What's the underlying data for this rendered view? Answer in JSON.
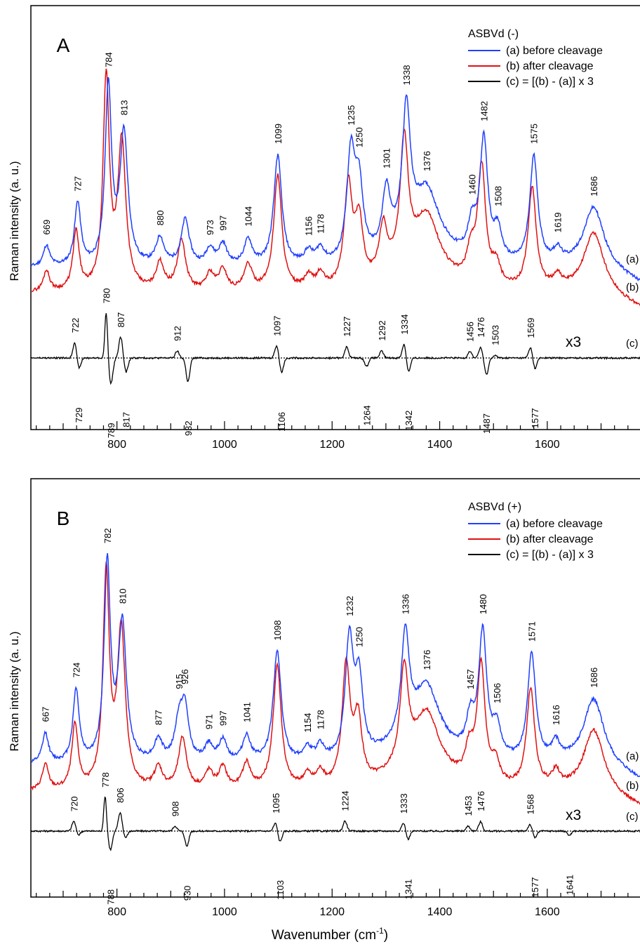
{
  "figure": {
    "xlabel": "Wavenumber (cm",
    "xlabel_sup": "-1",
    "xlabel_close": ")"
  },
  "chart_data": [
    {
      "type": "line",
      "panel_label": "A",
      "ylabel": "Raman intensity (a. u.)",
      "xlim": [
        640,
        1775
      ],
      "x_ticks": [
        800,
        1000,
        1200,
        1400,
        1600
      ],
      "legend": {
        "title": "ASBVd (-)",
        "placement": "top-right",
        "entries": [
          "(a) before cleavage",
          "(b) after cleavage",
          "(c) = [(b) - (a)] x 3"
        ]
      },
      "trace_labels": [
        "(a)",
        "(b)",
        "(c)"
      ],
      "scale_note": "x3",
      "series": [
        {
          "name": "(a) before cleavage",
          "color": "#1f3fff",
          "peaks": [
            [
              669,
              0.1
            ],
            [
              727,
              0.3
            ],
            [
              784,
              0.85
            ],
            [
              813,
              0.62
            ],
            [
              880,
              0.13
            ],
            [
              927,
              0.22
            ],
            [
              973,
              0.08
            ],
            [
              997,
              0.1
            ],
            [
              1044,
              0.12
            ],
            [
              1099,
              0.52
            ],
            [
              1156,
              0.06
            ],
            [
              1178,
              0.07
            ],
            [
              1235,
              0.5
            ],
            [
              1250,
              0.34
            ],
            [
              1301,
              0.28
            ],
            [
              1338,
              0.62
            ],
            [
              1376,
              0.28
            ],
            [
              1460,
              0.15
            ],
            [
              1482,
              0.57
            ],
            [
              1508,
              0.14
            ],
            [
              1575,
              0.51
            ],
            [
              1619,
              0.06
            ],
            [
              1686,
              0.28
            ]
          ]
        },
        {
          "name": "(b) after cleavage",
          "color": "#e01010",
          "peaks": [
            [
              669,
              0.1
            ],
            [
              724,
              0.28
            ],
            [
              780,
              1.0
            ],
            [
              809,
              0.7
            ],
            [
              880,
              0.13
            ],
            [
              920,
              0.24
            ],
            [
              973,
              0.08
            ],
            [
              997,
              0.1
            ],
            [
              1044,
              0.12
            ],
            [
              1099,
              0.55
            ],
            [
              1156,
              0.06
            ],
            [
              1178,
              0.07
            ],
            [
              1230,
              0.48
            ],
            [
              1250,
              0.3
            ],
            [
              1295,
              0.24
            ],
            [
              1334,
              0.6
            ],
            [
              1376,
              0.28
            ],
            [
              1458,
              0.14
            ],
            [
              1478,
              0.56
            ],
            [
              1505,
              0.1
            ],
            [
              1572,
              0.48
            ],
            [
              1619,
              0.06
            ],
            [
              1686,
              0.28
            ]
          ]
        },
        {
          "name": "(c) = [(b) - (a)] x 3",
          "color": "#000000",
          "extrema": [
            [
              722,
              0.2
            ],
            [
              729,
              -0.14
            ],
            [
              780,
              0.55
            ],
            [
              789,
              -0.3
            ],
            [
              807,
              0.25
            ],
            [
              817,
              -0.17
            ],
            [
              912,
              0.08
            ],
            [
              932,
              -0.28
            ],
            [
              1097,
              0.15
            ],
            [
              1106,
              -0.17
            ],
            [
              1227,
              0.13
            ],
            [
              1264,
              -0.1
            ],
            [
              1292,
              0.08
            ],
            [
              1334,
              0.17
            ],
            [
              1342,
              -0.17
            ],
            [
              1456,
              0.08
            ],
            [
              1476,
              0.12
            ],
            [
              1487,
              -0.2
            ],
            [
              1503,
              0.03
            ],
            [
              1569,
              0.13
            ],
            [
              1577,
              -0.13
            ]
          ]
        }
      ],
      "peak_labels": [
        {
          "text": "669",
          "x": 669
        },
        {
          "text": "727",
          "x": 727
        },
        {
          "text": "784",
          "x": 784
        },
        {
          "text": "813",
          "x": 813
        },
        {
          "text": "880",
          "x": 880
        },
        {
          "text": "973",
          "x": 973
        },
        {
          "text": "997",
          "x": 997
        },
        {
          "text": "1044",
          "x": 1044
        },
        {
          "text": "1099",
          "x": 1099
        },
        {
          "text": "1156",
          "x": 1156
        },
        {
          "text": "1178",
          "x": 1178
        },
        {
          "text": "1235",
          "x": 1235
        },
        {
          "text": "1250",
          "x": 1250
        },
        {
          "text": "1301",
          "x": 1301
        },
        {
          "text": "1338",
          "x": 1338
        },
        {
          "text": "1376",
          "x": 1376
        },
        {
          "text": "1460",
          "x": 1460
        },
        {
          "text": "1482",
          "x": 1482
        },
        {
          "text": "1508",
          "x": 1508
        },
        {
          "text": "1575",
          "x": 1575
        },
        {
          "text": "1619",
          "x": 1619
        },
        {
          "text": "1686",
          "x": 1686
        }
      ],
      "diff_labels_up": [
        {
          "text": "722",
          "x": 722
        },
        {
          "text": "780",
          "x": 780
        },
        {
          "text": "807",
          "x": 807
        },
        {
          "text": "912",
          "x": 912
        },
        {
          "text": "1097",
          "x": 1097
        },
        {
          "text": "1227",
          "x": 1227
        },
        {
          "text": "1292",
          "x": 1292
        },
        {
          "text": "1334",
          "x": 1334
        },
        {
          "text": "1456",
          "x": 1456
        },
        {
          "text": "1476",
          "x": 1476
        },
        {
          "text": "1503",
          "x": 1503
        },
        {
          "text": "1569",
          "x": 1569
        }
      ],
      "diff_labels_down": [
        {
          "text": "729",
          "x": 729
        },
        {
          "text": "789",
          "x": 789
        },
        {
          "text": "817",
          "x": 817
        },
        {
          "text": "932",
          "x": 932
        },
        {
          "text": "1106",
          "x": 1106
        },
        {
          "text": "1264",
          "x": 1264
        },
        {
          "text": "1342",
          "x": 1342
        },
        {
          "text": "1487",
          "x": 1487
        },
        {
          "text": "1577",
          "x": 1577
        }
      ]
    },
    {
      "type": "line",
      "panel_label": "B",
      "ylabel": "Raman intensity (a. u.)",
      "xlim": [
        640,
        1775
      ],
      "x_ticks": [
        800,
        1000,
        1200,
        1400,
        1600
      ],
      "legend": {
        "title": "ASBVd (+)",
        "placement": "top-right",
        "entries": [
          "(a) before cleavage",
          "(b) after cleavage",
          "(c) = [(b) - (a)] x 3"
        ]
      },
      "trace_labels": [
        "(a)",
        "(b)",
        "(c)"
      ],
      "scale_note": "x3",
      "series": [
        {
          "name": "(a) before cleavage",
          "color": "#1f3fff",
          "peaks": [
            [
              667,
              0.14
            ],
            [
              724,
              0.34
            ],
            [
              782,
              0.92
            ],
            [
              810,
              0.64
            ],
            [
              877,
              0.1
            ],
            [
              915,
              0.16
            ],
            [
              926,
              0.24
            ],
            [
              971,
              0.08
            ],
            [
              997,
              0.1
            ],
            [
              1041,
              0.12
            ],
            [
              1098,
              0.52
            ],
            [
              1154,
              0.06
            ],
            [
              1178,
              0.07
            ],
            [
              1232,
              0.55
            ],
            [
              1250,
              0.35
            ],
            [
              1336,
              0.48
            ],
            [
              1376,
              0.28
            ],
            [
              1457,
              0.16
            ],
            [
              1480,
              0.58
            ],
            [
              1506,
              0.14
            ],
            [
              1571,
              0.5
            ],
            [
              1616,
              0.08
            ],
            [
              1686,
              0.3
            ]
          ]
        },
        {
          "name": "(b) after cleavage",
          "color": "#e01010",
          "peaks": [
            [
              667,
              0.12
            ],
            [
              722,
              0.3
            ],
            [
              780,
              1.0
            ],
            [
              808,
              0.74
            ],
            [
              877,
              0.1
            ],
            [
              922,
              0.24
            ],
            [
              971,
              0.08
            ],
            [
              997,
              0.1
            ],
            [
              1041,
              0.12
            ],
            [
              1098,
              0.58
            ],
            [
              1154,
              0.06
            ],
            [
              1178,
              0.07
            ],
            [
              1226,
              0.56
            ],
            [
              1248,
              0.3
            ],
            [
              1334,
              0.45
            ],
            [
              1376,
              0.28
            ],
            [
              1455,
              0.14
            ],
            [
              1477,
              0.55
            ],
            [
              1504,
              0.1
            ],
            [
              1569,
              0.46
            ],
            [
              1616,
              0.07
            ],
            [
              1686,
              0.28
            ]
          ]
        },
        {
          "name": "(c) = [(b) - (a)] x 3",
          "color": "#000000",
          "extrema": [
            [
              720,
              0.12
            ],
            [
              728,
              -0.05
            ],
            [
              778,
              0.42
            ],
            [
              788,
              -0.22
            ],
            [
              806,
              0.22
            ],
            [
              816,
              -0.08
            ],
            [
              908,
              0.06
            ],
            [
              930,
              -0.18
            ],
            [
              1095,
              0.1
            ],
            [
              1103,
              -0.13
            ],
            [
              1224,
              0.12
            ],
            [
              1333,
              0.1
            ],
            [
              1341,
              -0.1
            ],
            [
              1453,
              0.06
            ],
            [
              1476,
              0.11
            ],
            [
              1568,
              0.08
            ],
            [
              1577,
              -0.08
            ],
            [
              1641,
              -0.05
            ]
          ]
        }
      ],
      "peak_labels": [
        {
          "text": "667",
          "x": 667
        },
        {
          "text": "724",
          "x": 724
        },
        {
          "text": "782",
          "x": 782
        },
        {
          "text": "810",
          "x": 810
        },
        {
          "text": "877",
          "x": 877
        },
        {
          "text": "915",
          "x": 915
        },
        {
          "text": "926",
          "x": 926
        },
        {
          "text": "971",
          "x": 971
        },
        {
          "text": "997",
          "x": 997
        },
        {
          "text": "1041",
          "x": 1041
        },
        {
          "text": "1098",
          "x": 1098
        },
        {
          "text": "1154",
          "x": 1154
        },
        {
          "text": "1178",
          "x": 1178
        },
        {
          "text": "1232",
          "x": 1232
        },
        {
          "text": "1250",
          "x": 1250
        },
        {
          "text": "1336",
          "x": 1336
        },
        {
          "text": "1376",
          "x": 1376
        },
        {
          "text": "1457",
          "x": 1457
        },
        {
          "text": "1480",
          "x": 1480
        },
        {
          "text": "1506",
          "x": 1506
        },
        {
          "text": "1571",
          "x": 1571
        },
        {
          "text": "1616",
          "x": 1616
        },
        {
          "text": "1686",
          "x": 1686
        }
      ],
      "diff_labels_up": [
        {
          "text": "720",
          "x": 720
        },
        {
          "text": "778",
          "x": 778
        },
        {
          "text": "806",
          "x": 806
        },
        {
          "text": "908",
          "x": 908
        },
        {
          "text": "1095",
          "x": 1095
        },
        {
          "text": "1224",
          "x": 1224
        },
        {
          "text": "1333",
          "x": 1333
        },
        {
          "text": "1453",
          "x": 1453
        },
        {
          "text": "1476",
          "x": 1476
        },
        {
          "text": "1568",
          "x": 1568
        }
      ],
      "diff_labels_down": [
        {
          "text": "788",
          "x": 788
        },
        {
          "text": "930",
          "x": 930
        },
        {
          "text": "1103",
          "x": 1103
        },
        {
          "text": "1341",
          "x": 1341
        },
        {
          "text": "1577",
          "x": 1577
        },
        {
          "text": "1641",
          "x": 1641
        }
      ]
    }
  ]
}
